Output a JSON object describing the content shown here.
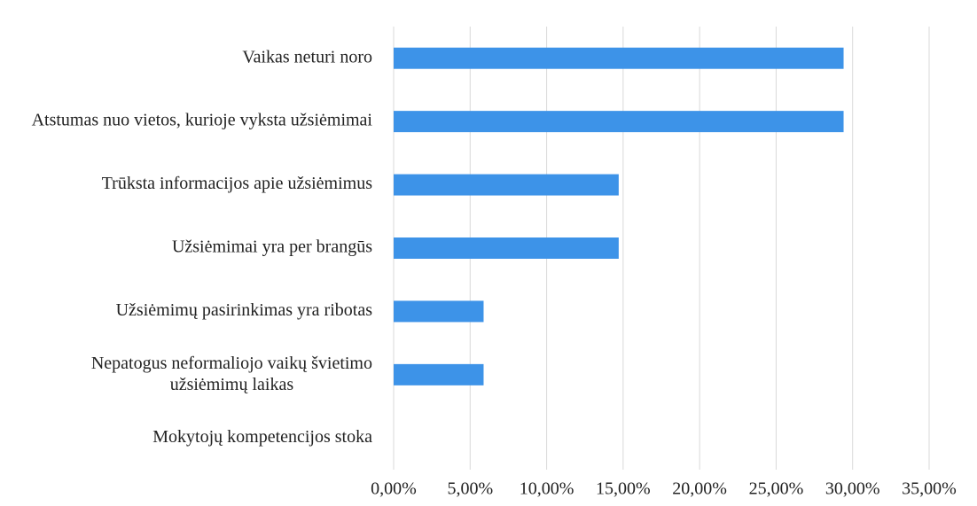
{
  "chart_data": {
    "type": "bar",
    "orientation": "horizontal",
    "categories": [
      "Vaikas neturi noro",
      "Atstumas nuo vietos, kurioje vyksta užsiėmimai",
      "Trūksta informacijos apie užsiėmimus",
      "Užsiėmimai yra per brangūs",
      "Užsiėmimų pasirinkimas yra ribotas",
      "Nepatogus neformaliojo vaikų švietimo užsiėmimų laikas",
      "Mokytojų kompetencijos stoka"
    ],
    "values": [
      29.41,
      29.41,
      14.71,
      14.71,
      5.88,
      5.88,
      0
    ],
    "color": "#3d93e8",
    "xlim": [
      0,
      35
    ],
    "xticks": [
      {
        "value": 0,
        "label": "0,00%"
      },
      {
        "value": 5,
        "label": "5,00%"
      },
      {
        "value": 10,
        "label": "10,00%"
      },
      {
        "value": 15,
        "label": "15,00%"
      },
      {
        "value": 20,
        "label": "20,00%"
      },
      {
        "value": 25,
        "label": "25,00%"
      },
      {
        "value": 30,
        "label": "30,00%"
      },
      {
        "value": 35,
        "label": "35,00%"
      }
    ],
    "grid": true
  }
}
